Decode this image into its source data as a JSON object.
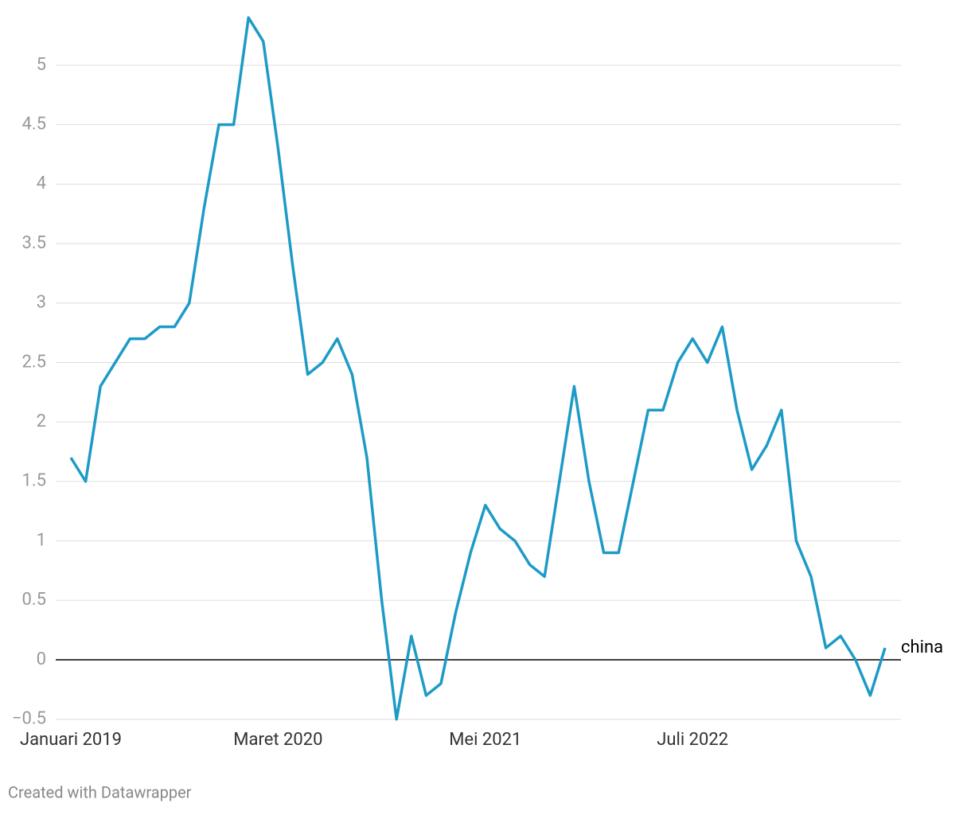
{
  "chart_data": {
    "type": "line",
    "categories": [
      "Januari 2019",
      null,
      null,
      null,
      null,
      null,
      null,
      null,
      null,
      null,
      null,
      null,
      null,
      null,
      "Maret 2020",
      null,
      null,
      null,
      null,
      null,
      null,
      null,
      null,
      null,
      null,
      null,
      null,
      null,
      "Mei 2021",
      null,
      null,
      null,
      null,
      null,
      null,
      null,
      null,
      null,
      null,
      null,
      null,
      null,
      "Juli 2022",
      null,
      null,
      null,
      null,
      null,
      null,
      null,
      null,
      null,
      null,
      null,
      null,
      null
    ],
    "series": [
      {
        "name": "china",
        "color": "#1d9bc6",
        "values": [
          1.7,
          1.5,
          2.3,
          2.5,
          2.7,
          2.7,
          2.8,
          2.8,
          3.0,
          3.8,
          4.5,
          4.5,
          5.4,
          5.2,
          4.3,
          3.3,
          2.4,
          2.5,
          2.7,
          2.4,
          1.7,
          0.5,
          -0.5,
          0.2,
          -0.3,
          -0.2,
          0.4,
          0.9,
          1.3,
          1.1,
          1.0,
          0.8,
          0.7,
          1.5,
          2.3,
          1.5,
          0.9,
          0.9,
          1.5,
          2.1,
          2.1,
          2.5,
          2.7,
          2.5,
          2.8,
          2.1,
          1.6,
          1.8,
          2.1,
          1.0,
          0.7,
          0.1,
          0.2,
          0.0,
          -0.3,
          0.1
        ]
      }
    ],
    "ylim": [
      -0.5,
      5.4
    ],
    "yticks": [
      {
        "value": -0.5,
        "label": "−0.5"
      },
      0,
      0.5,
      1,
      1.5,
      2,
      2.5,
      3,
      3.5,
      4,
      4.5,
      5
    ],
    "grid": true,
    "footer": "Created with Datawrapper"
  }
}
